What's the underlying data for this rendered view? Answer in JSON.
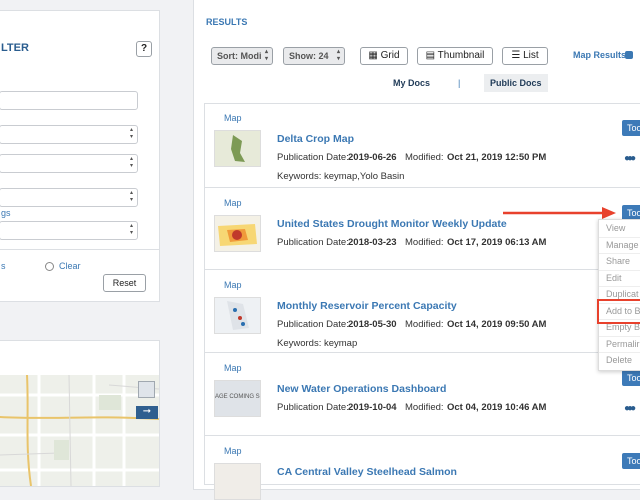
{
  "filter": {
    "title": "LTER",
    "help": "?",
    "link": "gs",
    "option": "s",
    "clear": "Clear",
    "reset": "Reset"
  },
  "results": {
    "heading": "RESULTS",
    "sort": "Sort: Modi",
    "show": "Show: 24",
    "views": [
      "Grid",
      "Thumbnail",
      "List"
    ],
    "map_results": "Map Results",
    "tabs": [
      "My Docs",
      "|",
      "Public Docs"
    ],
    "items": [
      {
        "type": "Map",
        "title": "Delta Crop Map",
        "pub_label": "Publication Date:",
        "pub_date": "2019-06-26",
        "mod_label": "Modified:",
        "modified": "Oct 21, 2019 12:50 PM",
        "keywords": "Keywords: keymap,Yolo Basin",
        "tools": "Too"
      },
      {
        "type": "Map",
        "title": "United States Drought Monitor Weekly Update",
        "pub_label": "Publication Date:",
        "pub_date": "2018-03-23",
        "mod_label": "Modified:",
        "modified": "Oct 17, 2019 06:13 AM",
        "tools": "Too"
      },
      {
        "type": "Map",
        "title": "Monthly Reservoir Percent Capacity",
        "pub_label": "Publication Date:",
        "pub_date": "2018-05-30",
        "mod_label": "Modified:",
        "modified": "Oct 14, 2019 09:50 AM",
        "keywords": "Keywords: keymap"
      },
      {
        "type": "Map",
        "title": "New Water Operations Dashboard",
        "thumb_text": "AGE COMING SOO",
        "pub_label": "Publication Date:",
        "pub_date": "2019-10-04",
        "mod_label": "Modified:",
        "modified": "Oct 04, 2019 10:46 AM",
        "tools": "Too"
      },
      {
        "type": "Map",
        "title": "CA Central Valley Steelhead Salmon",
        "tools": "Too"
      }
    ],
    "menu": [
      "View",
      "Manage",
      "Share",
      "Edit",
      "Duplicat",
      "Add to B",
      "Empty B",
      "Permalir",
      "Delete"
    ]
  }
}
